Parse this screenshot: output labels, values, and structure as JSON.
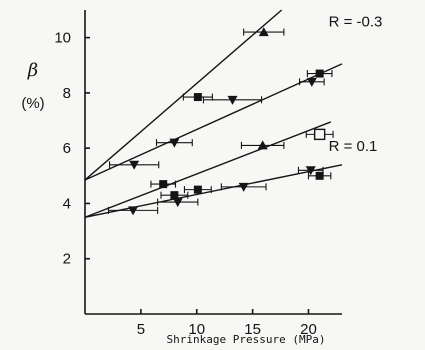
{
  "chart_data": {
    "type": "scatter",
    "title": "",
    "xlabel": "Shrinkage Pressure (MPa)",
    "ylabel": "β",
    "ylabel_unit": "(%)",
    "xlim": [
      0,
      23
    ],
    "ylim": [
      0,
      11
    ],
    "xticks": [
      5,
      10,
      15,
      20
    ],
    "yticks": [
      2,
      4,
      6,
      8,
      10
    ],
    "grid": false,
    "annotations": [
      {
        "text": "R = -0.3",
        "x": 21.8,
        "y": 10.4
      },
      {
        "text": "R = 0.1",
        "x": 21.8,
        "y": 5.9
      }
    ],
    "fit_lines": [
      {
        "x": [
          0,
          17.6
        ],
        "y": [
          4.85,
          11.0
        ]
      },
      {
        "x": [
          0,
          23
        ],
        "y": [
          4.85,
          9.05
        ]
      },
      {
        "x": [
          0,
          22
        ],
        "y": [
          3.5,
          6.95
        ]
      },
      {
        "x": [
          0,
          23
        ],
        "y": [
          3.5,
          5.4
        ]
      }
    ],
    "points": [
      {
        "marker": "triangle-up",
        "x": 16.0,
        "y": 10.2,
        "xerr": 1.8
      },
      {
        "marker": "triangle-up",
        "x": 15.9,
        "y": 6.1,
        "xerr": 1.9
      },
      {
        "marker": "square",
        "x": 10.1,
        "y": 7.85,
        "xerr": 1.3
      },
      {
        "marker": "square",
        "x": 21.0,
        "y": 8.7,
        "xerr": 1.1
      },
      {
        "marker": "square",
        "x": 7.0,
        "y": 4.7,
        "xerr": 1.1
      },
      {
        "marker": "square",
        "x": 8.0,
        "y": 4.3,
        "xerr": 1.2
      },
      {
        "marker": "square",
        "x": 10.1,
        "y": 4.5,
        "xerr": 1.2
      },
      {
        "marker": "square",
        "x": 21.0,
        "y": 5.0,
        "xerr": 1.0
      },
      {
        "marker": "open-square",
        "x": 21.0,
        "y": 6.5,
        "xerr": 1.2
      },
      {
        "marker": "triangle-down",
        "x": 20.3,
        "y": 8.4,
        "xerr": 1.1
      },
      {
        "marker": "triangle-down",
        "x": 13.2,
        "y": 7.75,
        "xerr": 2.6
      },
      {
        "marker": "triangle-down",
        "x": 8.0,
        "y": 6.2,
        "xerr": 1.6
      },
      {
        "marker": "triangle-down",
        "x": 4.4,
        "y": 5.4,
        "xerr": 2.2
      },
      {
        "marker": "triangle-down",
        "x": 8.3,
        "y": 4.05,
        "xerr": 1.8
      },
      {
        "marker": "triangle-down",
        "x": 4.3,
        "y": 3.75,
        "xerr": 2.2
      },
      {
        "marker": "triangle-down",
        "x": 14.2,
        "y": 4.6,
        "xerr": 2.0
      },
      {
        "marker": "triangle-down",
        "x": 20.2,
        "y": 5.2,
        "xerr": 1.1
      }
    ]
  }
}
